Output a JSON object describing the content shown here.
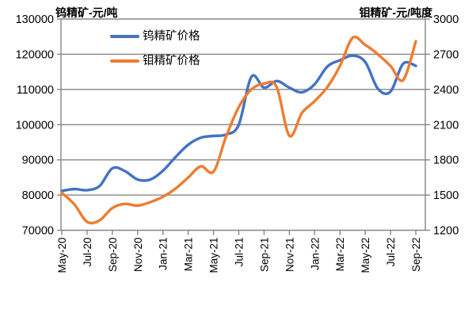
{
  "window": {
    "background": "#ffffff"
  },
  "header": {
    "left_axis_title": "钨精矿-元/吨",
    "right_axis_title": "钼精矿-元/吨度"
  },
  "legend": {
    "items": [
      {
        "label": "钨精矿价格",
        "color": "#4472C4"
      },
      {
        "label": "钼精矿价格",
        "color": "#ED7D31"
      }
    ]
  },
  "chart_data": {
    "type": "line",
    "smoothed": true,
    "grid": true,
    "legend_position": "top-left-inside",
    "gridline_color": "#868686",
    "label_color": "#000000",
    "categories": [
      "May-20",
      "Jun-20",
      "Jul-20",
      "Aug-20",
      "Sep-20",
      "Oct-20",
      "Nov-20",
      "Dec-20",
      "Jan-21",
      "Feb-21",
      "Mar-21",
      "Apr-21",
      "May-21",
      "Jun-21",
      "Jul-21",
      "Aug-21",
      "Sep-21",
      "Oct-21",
      "Nov-21",
      "Dec-21",
      "Jan-22",
      "Feb-22",
      "Mar-22",
      "Apr-22",
      "May-22",
      "Jun-22",
      "Jul-22",
      "Aug-22",
      "Sep-22"
    ],
    "x_tick_labels": [
      "May-20",
      "Jul-20",
      "Sep-20",
      "Nov-20",
      "Jan-21",
      "Mar-21",
      "May-21",
      "Jul-21",
      "Sep-21",
      "Nov-21",
      "Jan-22",
      "Mar-22",
      "May-22",
      "Jul-22",
      "Sep-22"
    ],
    "left_axis": {
      "title": "钨精矿-元/吨",
      "min": 70000,
      "max": 130000,
      "step": 10000
    },
    "right_axis": {
      "title": "钼精矿-元/吨度",
      "min": 1200,
      "max": 3000,
      "step": 300
    },
    "series": [
      {
        "name": "钨精矿价格",
        "axis": "left",
        "color": "#4472C4",
        "values": [
          81200,
          81700,
          81400,
          82600,
          87600,
          86800,
          84400,
          84400,
          86900,
          90800,
          94300,
          96300,
          96800,
          97200,
          100000,
          113600,
          110500,
          112400,
          110500,
          109200,
          111500,
          116500,
          118300,
          119600,
          117800,
          110200,
          109400,
          117300,
          116700
        ]
      },
      {
        "name": "钼精矿价格",
        "axis": "right",
        "color": "#ED7D31",
        "values": [
          1520,
          1420,
          1272,
          1285,
          1390,
          1425,
          1410,
          1440,
          1485,
          1555,
          1650,
          1745,
          1700,
          2000,
          2250,
          2400,
          2450,
          2420,
          2005,
          2200,
          2300,
          2420,
          2600,
          2840,
          2780,
          2700,
          2600,
          2480,
          2810
        ]
      }
    ]
  }
}
